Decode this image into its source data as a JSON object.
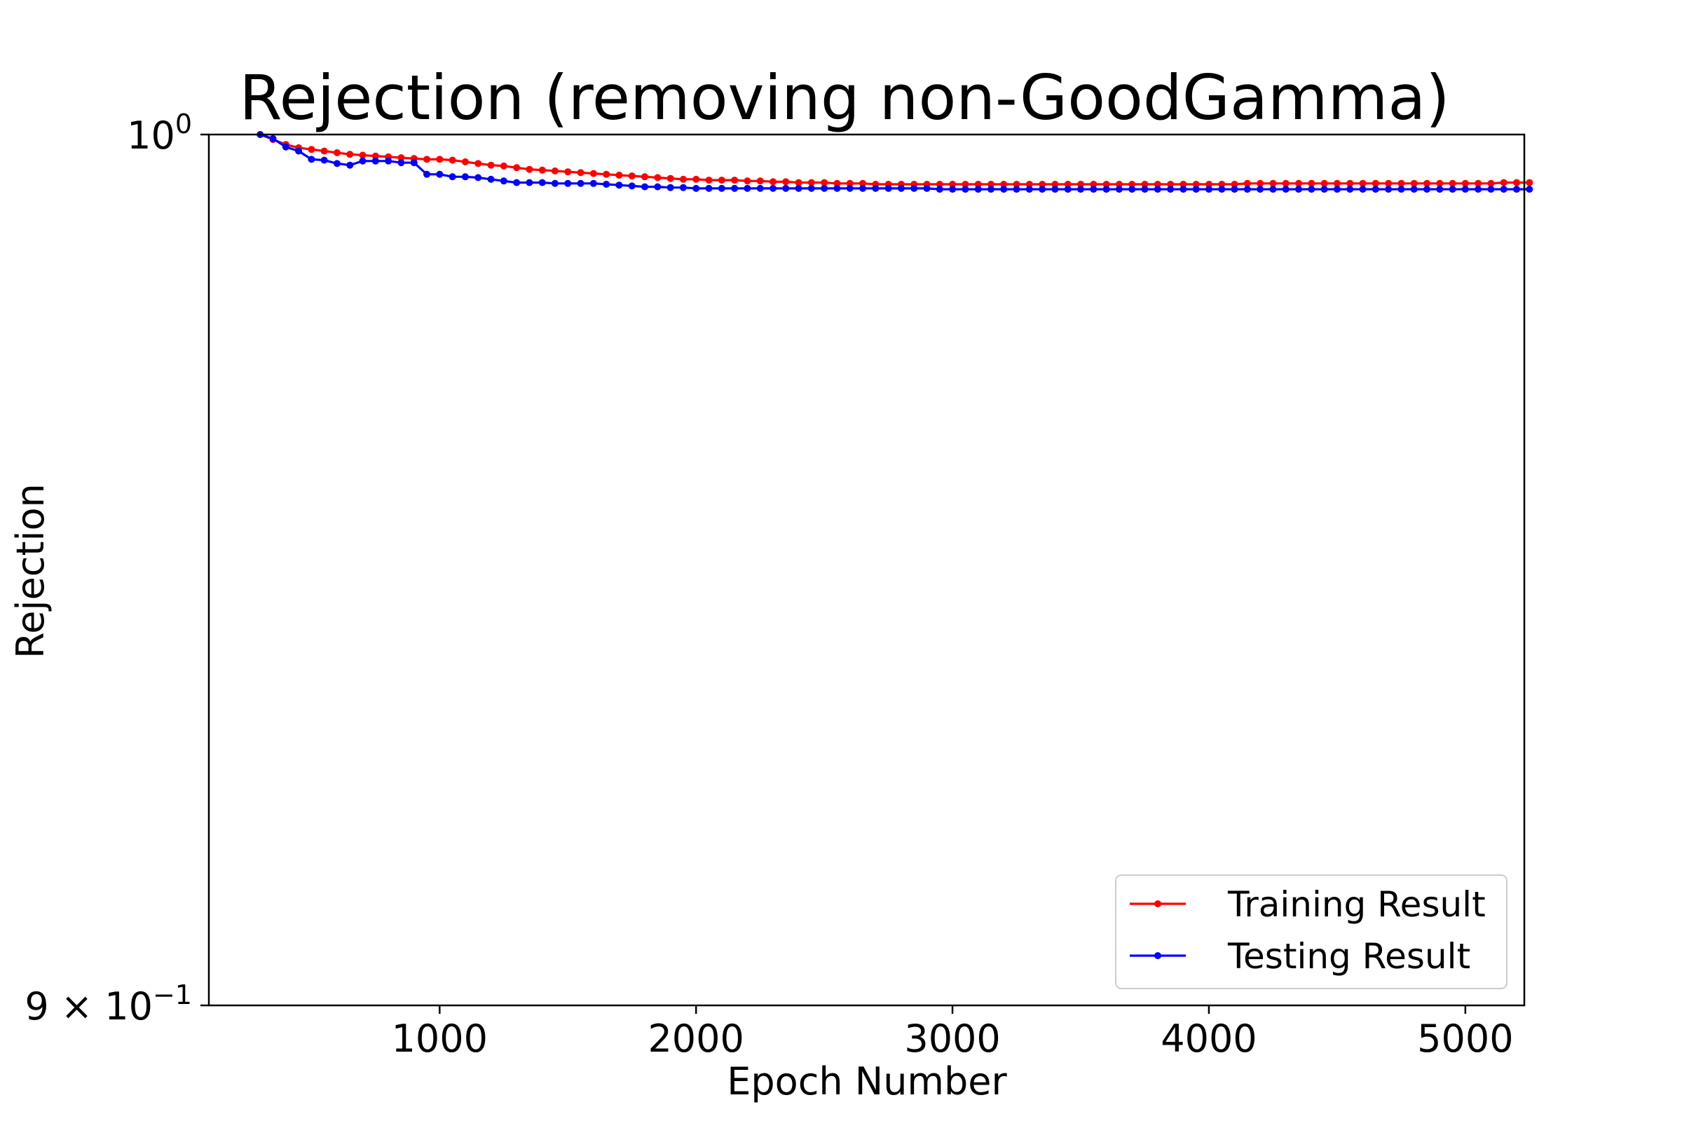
{
  "chart_data": {
    "type": "line",
    "title": "Rejection (removing non-GoodGamma)",
    "xlabel": "Epoch Number",
    "ylabel": "Rejection",
    "yscale": "log",
    "xlim": [
      100,
      5230
    ],
    "ylim": [
      0.9,
      1.0
    ],
    "x_ticks": [
      1000,
      2000,
      3000,
      4000,
      5000
    ],
    "x_tick_labels": [
      "1000",
      "2000",
      "3000",
      "4000",
      "5000"
    ],
    "y_tick_labels": {
      "top": {
        "base": "10",
        "exp": "0",
        "value": 1.0
      },
      "bottom": {
        "coef": "9",
        "times": "×",
        "base": "10",
        "exp": "−1",
        "value": 0.9
      }
    },
    "grid": false,
    "legend_position": "lower-right",
    "x_start": 300,
    "x_step": 50,
    "series": [
      {
        "name": "Training Result",
        "color": "#ff0000",
        "marker": "dot",
        "values": [
          1.0,
          0.9994,
          0.9988,
          0.9984,
          0.9982,
          0.998,
          0.9978,
          0.9976,
          0.9975,
          0.9974,
          0.9973,
          0.9972,
          0.9971,
          0.997,
          0.997,
          0.9969,
          0.9967,
          0.9965,
          0.9963,
          0.9962,
          0.996,
          0.9958,
          0.9957,
          0.9956,
          0.9955,
          0.9954,
          0.9953,
          0.9952,
          0.9951,
          0.995,
          0.9949,
          0.9948,
          0.9947,
          0.9946,
          0.9946,
          0.9945,
          0.9945,
          0.9945,
          0.9944,
          0.9944,
          0.9943,
          0.9943,
          0.9942,
          0.9942,
          0.9942,
          0.9941,
          0.9941,
          0.9941,
          0.994,
          0.994,
          0.994,
          0.994,
          0.994,
          0.994,
          0.994,
          0.994,
          0.994,
          0.994,
          0.994,
          0.994,
          0.994,
          0.994,
          0.994,
          0.994,
          0.994,
          0.994,
          0.994,
          0.994,
          0.994,
          0.994,
          0.994,
          0.994,
          0.994,
          0.994,
          0.994,
          0.994,
          0.994,
          0.9941,
          0.9941,
          0.9941,
          0.9941,
          0.9941,
          0.9941,
          0.9941,
          0.9941,
          0.9941,
          0.9941,
          0.9941,
          0.9941,
          0.9941,
          0.9941,
          0.9941,
          0.9941,
          0.9941,
          0.9941,
          0.9941,
          0.9941,
          0.9942,
          0.9942,
          0.9942
        ]
      },
      {
        "name": "Testing Result",
        "color": "#0000ff",
        "marker": "dot",
        "values": [
          1.0,
          0.9995,
          0.9985,
          0.998,
          0.997,
          0.9969,
          0.9965,
          0.9963,
          0.9968,
          0.9968,
          0.9968,
          0.9966,
          0.9966,
          0.9952,
          0.9952,
          0.9949,
          0.9949,
          0.9948,
          0.9946,
          0.9944,
          0.9942,
          0.9942,
          0.9942,
          0.9941,
          0.9941,
          0.9941,
          0.9941,
          0.994,
          0.9939,
          0.9938,
          0.9937,
          0.9937,
          0.9936,
          0.9936,
          0.9935,
          0.9935,
          0.9935,
          0.9935,
          0.9935,
          0.9935,
          0.9935,
          0.9935,
          0.9935,
          0.9935,
          0.9935,
          0.9935,
          0.9935,
          0.9935,
          0.9935,
          0.9935,
          0.9935,
          0.9935,
          0.9935,
          0.9934,
          0.9934,
          0.9934,
          0.9934,
          0.9934,
          0.9934,
          0.9934,
          0.9934,
          0.9934,
          0.9934,
          0.9934,
          0.9934,
          0.9934,
          0.9934,
          0.9934,
          0.9934,
          0.9934,
          0.9934,
          0.9934,
          0.9934,
          0.9934,
          0.9934,
          0.9934,
          0.9934,
          0.9934,
          0.9934,
          0.9934,
          0.9934,
          0.9934,
          0.9934,
          0.9934,
          0.9934,
          0.9934,
          0.9934,
          0.9934,
          0.9934,
          0.9934,
          0.9934,
          0.9934,
          0.9934,
          0.9934,
          0.9934,
          0.9934,
          0.9934,
          0.9934,
          0.9934,
          0.9934
        ]
      }
    ]
  }
}
